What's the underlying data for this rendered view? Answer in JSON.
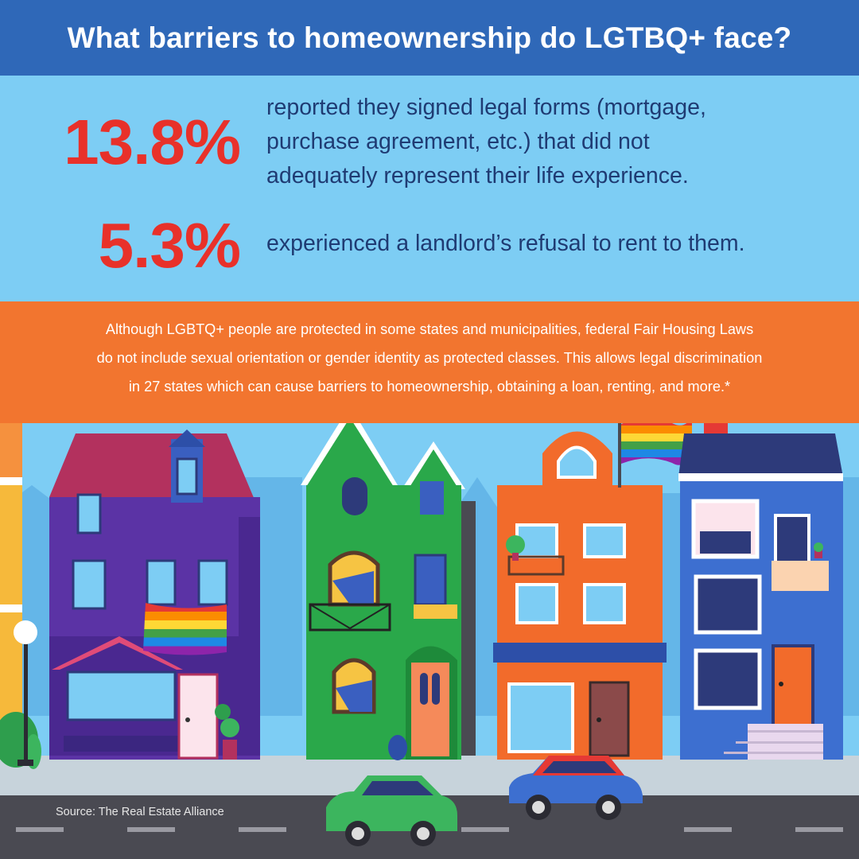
{
  "header": {
    "title": "What barriers to homeownership do LGTBQ+ face?"
  },
  "stats": [
    {
      "value": "13.8%",
      "lines": [
        "reported they signed legal forms (mortgage,",
        "purchase agreement, etc.) that did not",
        "adequately represent their life experience."
      ]
    },
    {
      "value": "5.3%",
      "lines": [
        "experienced a landlord’s refusal to rent to them."
      ]
    }
  ],
  "note": {
    "lines": [
      "Although LGBTQ+ people are protected in some states and municipalities, federal Fair Housing Laws",
      "do not include sexual orientation or gender identity as protected classes. This allows legal discrimination",
      "in 27 states which can cause barriers to homeownership, obtaining a loan, renting, and more.*"
    ]
  },
  "footer": {
    "source": "Source: The Real Estate Alliance"
  },
  "colors": {
    "header_bg": "#2f68b8",
    "stats_bg": "#7dcdf4",
    "stat_value": "#e8312a",
    "stat_text": "#1f3b73",
    "note_bg": "#f2752f",
    "road": "#4a4a52"
  },
  "illustration": {
    "houses": [
      "purple-house",
      "green-house",
      "orange-house",
      "blue-house"
    ],
    "flags": [
      "rainbow-flag",
      "rainbow-flag",
      "rainbow-flag"
    ],
    "cars": [
      "green-car",
      "red-blue-car"
    ]
  }
}
